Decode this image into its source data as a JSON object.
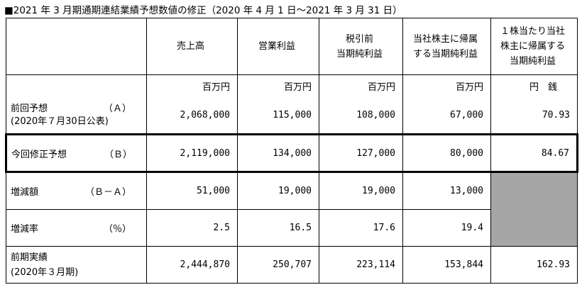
{
  "title": "■2021 年 3 月期通期連結業績予想数値の修正（2020 年 4 月 1 日～2021 年 3 月 31 日）",
  "headers": {
    "sales": "売上高",
    "operating_income": "営業利益",
    "pretax_line1": "税引前",
    "pretax_line2": "当期純利益",
    "parent_line1": "当社株主に帰属",
    "parent_line2": "する当期純利益",
    "eps_line1": "１株当たり当社",
    "eps_line2": "株主に帰属する",
    "eps_line3": "当期純利益"
  },
  "units": {
    "million_yen": "百万円",
    "yen_sen": "円　銭"
  },
  "rows": {
    "previous": {
      "label": "前回予想",
      "tag": "（Ａ）",
      "sub": "(2020年７月30日公表)",
      "sales": "2,068,000",
      "operating_income": "115,000",
      "pretax": "108,000",
      "parent": "67,000",
      "eps": "70.93"
    },
    "current": {
      "label": "今回修正予想",
      "tag": "（Ｂ）",
      "sales": "2,119,000",
      "operating_income": "134,000",
      "pretax": "127,000",
      "parent": "80,000",
      "eps": "84.67"
    },
    "change": {
      "label": "増減額",
      "tag": "（Ｂ－Ａ）",
      "sales": "51,000",
      "operating_income": "19,000",
      "pretax": "19,000",
      "parent": "13,000"
    },
    "rate": {
      "label": "増減率",
      "tag": "（％）",
      "sales": "2.5",
      "operating_income": "16.5",
      "pretax": "17.6",
      "parent": "19.4"
    },
    "prior_year": {
      "label": "前期実績",
      "sub": "(2020年３月期)",
      "sales": "2,444,870",
      "operating_income": "250,707",
      "pretax": "223,114",
      "parent": "153,844",
      "eps": "162.93"
    }
  }
}
